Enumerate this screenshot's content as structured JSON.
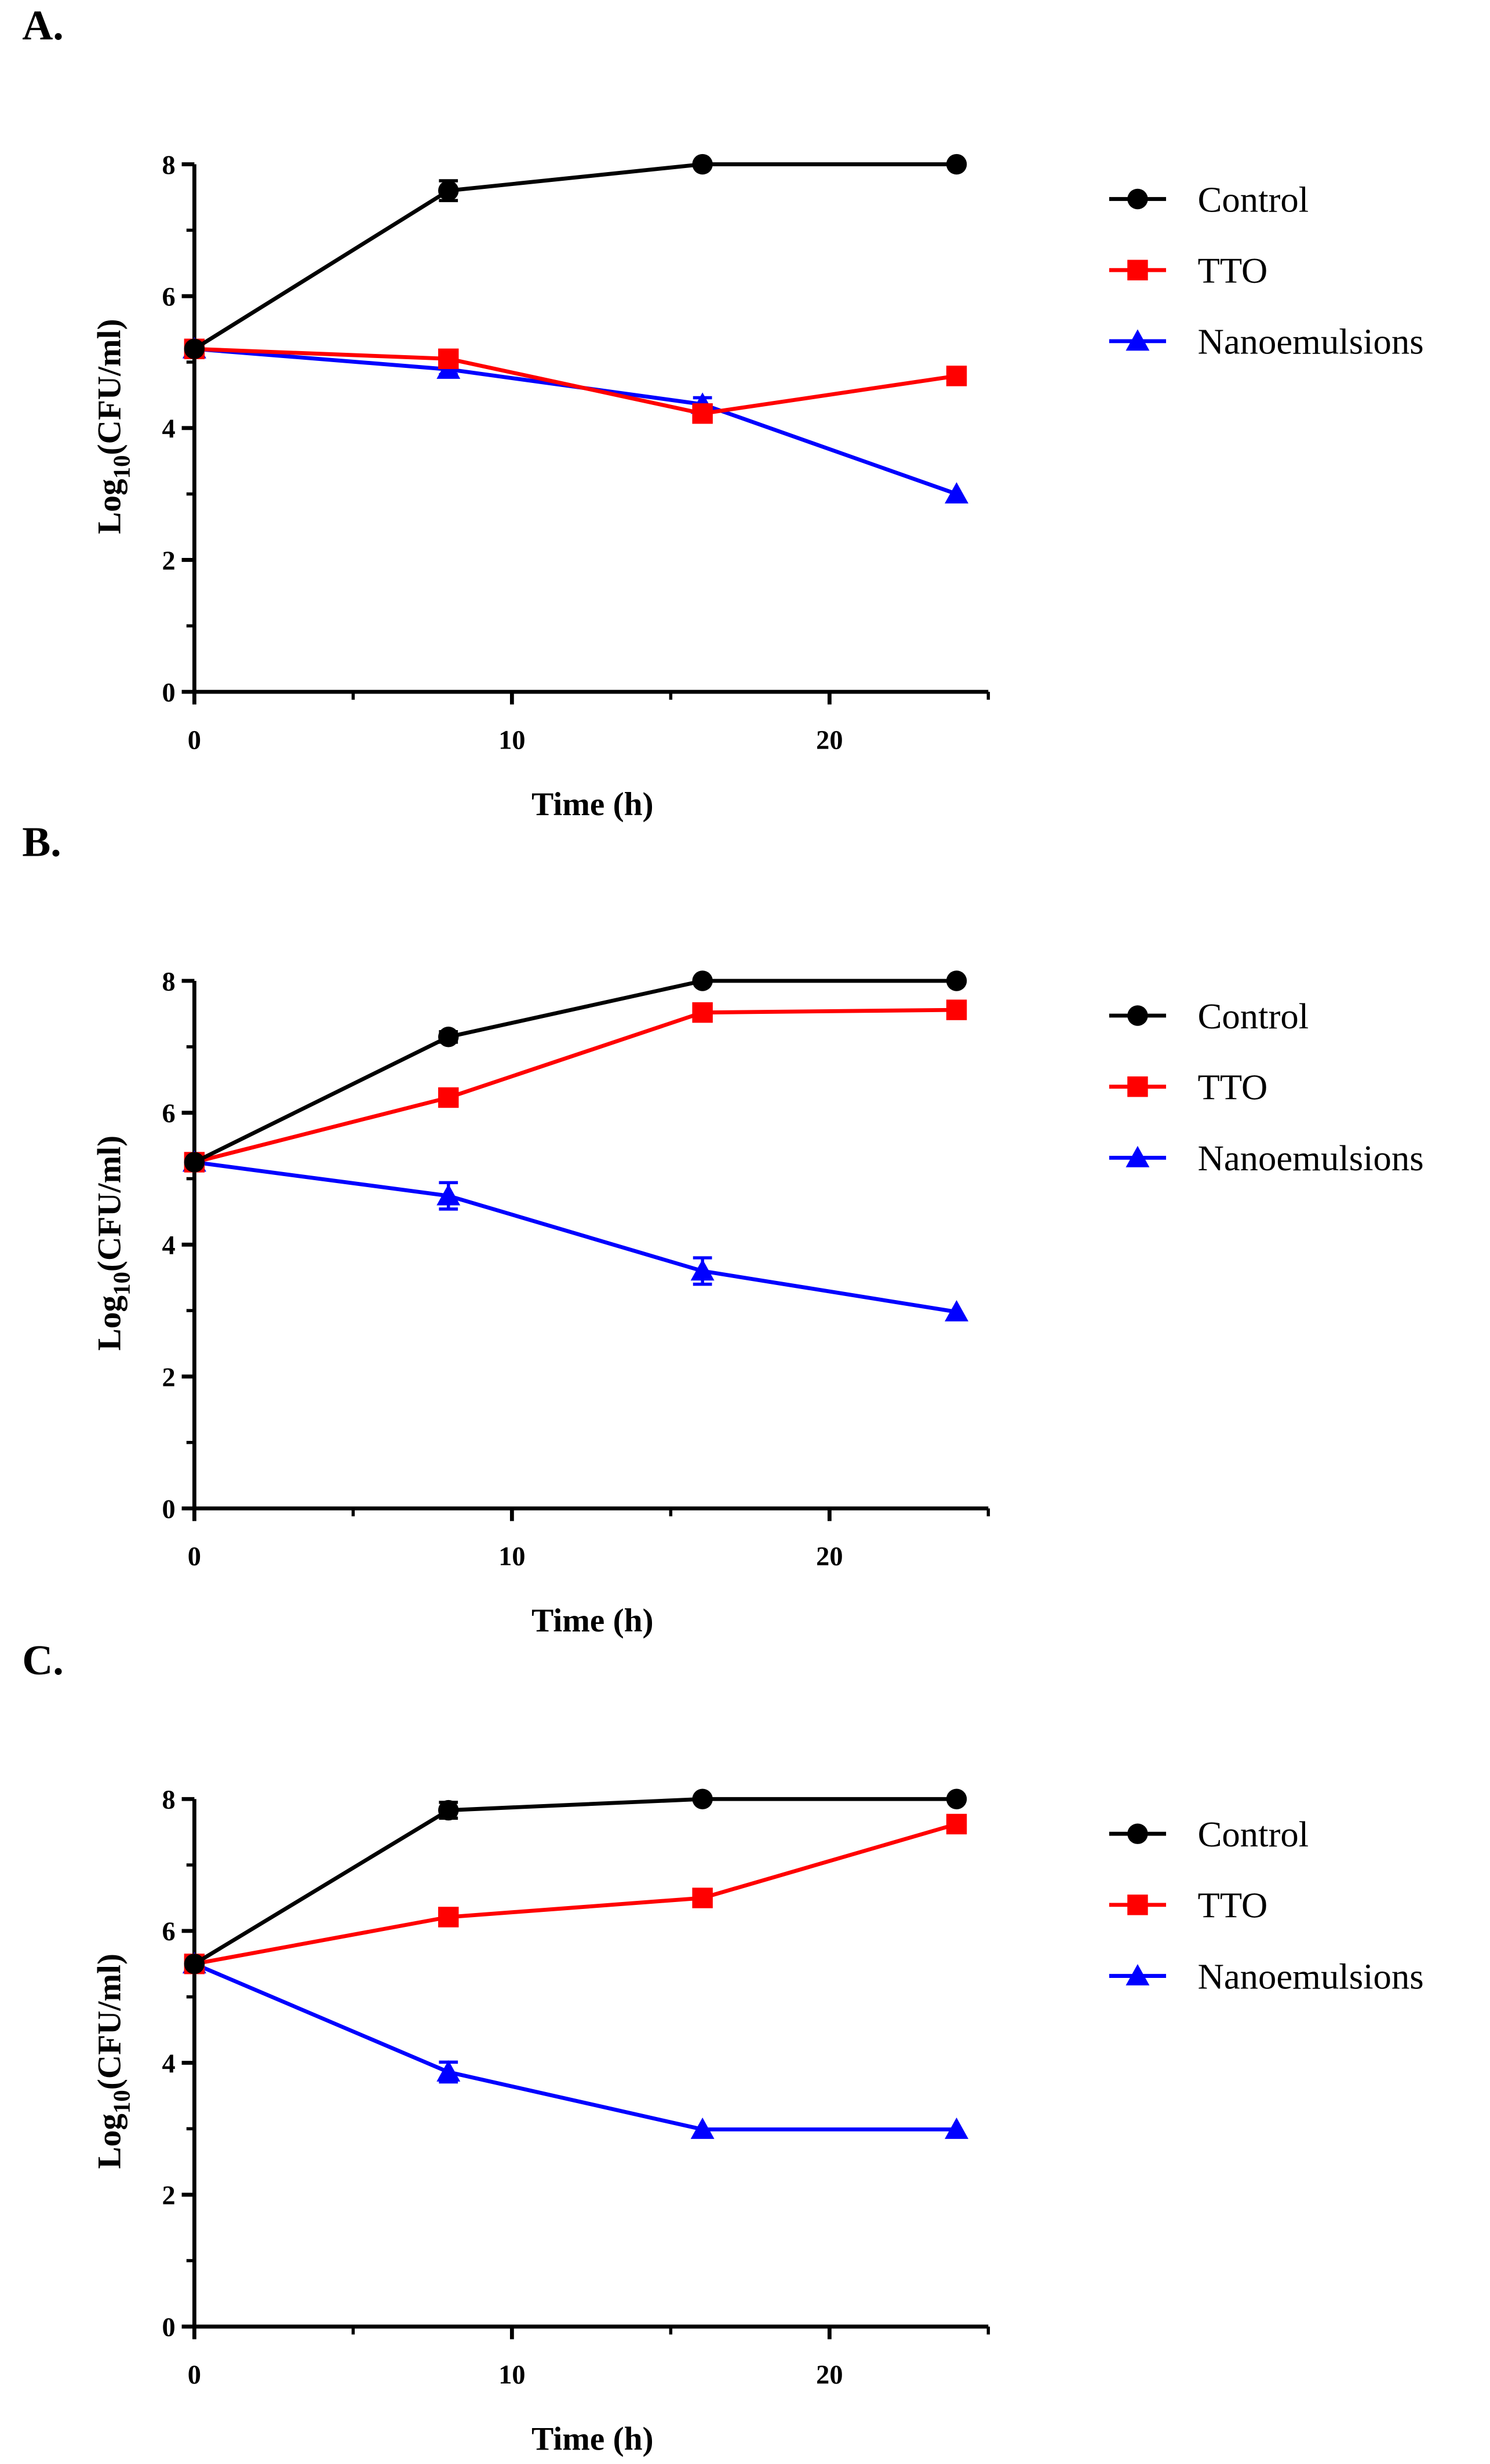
{
  "chart_data": [
    {
      "panel": "A.",
      "type": "line",
      "x": [
        0,
        8,
        16,
        24
      ],
      "xlabel": "Time (h)",
      "ylabel": {
        "main": "Log",
        "sub": "10",
        "rest": "(CFU/ml)"
      },
      "xlim": [
        0,
        25
      ],
      "ylim": [
        0,
        8
      ],
      "xticks": [
        "0",
        "10",
        "20"
      ],
      "yticks": [
        "0",
        "2",
        "4",
        "6",
        "8"
      ],
      "legend_position": "right",
      "series": [
        {
          "name": "Control",
          "color": "#000000",
          "marker": "circle",
          "values": [
            5.2,
            7.6,
            8.0,
            8.0
          ],
          "errors": [
            0.05,
            0.15,
            0.03,
            0.03
          ]
        },
        {
          "name": "TTO",
          "color": "#ff0000",
          "marker": "square",
          "values": [
            5.2,
            5.05,
            4.22,
            4.79
          ],
          "errors": [
            0.05,
            0.1,
            0.08,
            0.05
          ]
        },
        {
          "name": "Nanoemulsions",
          "color": "#0000ff",
          "marker": "triangle",
          "values": [
            5.2,
            4.89,
            4.36,
            3.0
          ],
          "errors": [
            0.05,
            0.08,
            0.1,
            0.03
          ]
        }
      ]
    },
    {
      "panel": "B.",
      "type": "line",
      "x": [
        0,
        8,
        16,
        24
      ],
      "xlabel": "Time (h)",
      "ylabel": {
        "main": "Log",
        "sub": "10",
        "rest": "(CFU/ml)"
      },
      "xlim": [
        0,
        25
      ],
      "ylim": [
        0,
        8
      ],
      "xticks": [
        "0",
        "10",
        "20"
      ],
      "yticks": [
        "0",
        "2",
        "4",
        "6",
        "8"
      ],
      "legend_position": "right",
      "series": [
        {
          "name": "Control",
          "color": "#000000",
          "marker": "circle",
          "values": [
            5.25,
            7.15,
            8.0,
            8.0
          ],
          "errors": [
            0.05,
            0.08,
            0.03,
            0.03
          ]
        },
        {
          "name": "TTO",
          "color": "#ff0000",
          "marker": "square",
          "values": [
            5.25,
            6.23,
            7.52,
            7.56
          ],
          "errors": [
            0.05,
            0.06,
            0.08,
            0.06
          ]
        },
        {
          "name": "Nanoemulsions",
          "color": "#0000ff",
          "marker": "triangle",
          "values": [
            5.25,
            4.74,
            3.6,
            2.98
          ],
          "errors": [
            0.05,
            0.2,
            0.2,
            0.03
          ]
        }
      ]
    },
    {
      "panel": "C.",
      "type": "line",
      "x": [
        0,
        8,
        16,
        24
      ],
      "xlabel": "Time (h)",
      "ylabel": {
        "main": "Log",
        "sub": "10",
        "rest": "(CFU/ml)"
      },
      "xlim": [
        0,
        25
      ],
      "ylim": [
        0,
        8
      ],
      "xticks": [
        "0",
        "10",
        "20"
      ],
      "yticks": [
        "0",
        "2",
        "4",
        "6",
        "8"
      ],
      "legend_position": "right",
      "series": [
        {
          "name": "Control",
          "color": "#000000",
          "marker": "circle",
          "values": [
            5.5,
            7.83,
            8.0,
            8.0
          ],
          "errors": [
            0.05,
            0.12,
            0.03,
            0.03
          ]
        },
        {
          "name": "TTO",
          "color": "#ff0000",
          "marker": "square",
          "values": [
            5.5,
            6.21,
            6.5,
            7.62
          ],
          "errors": [
            0.05,
            0.06,
            0.06,
            0.08
          ]
        },
        {
          "name": "Nanoemulsions",
          "color": "#0000ff",
          "marker": "triangle",
          "values": [
            5.5,
            3.86,
            2.99,
            2.99
          ],
          "errors": [
            0.05,
            0.15,
            0.03,
            0.03
          ]
        }
      ]
    }
  ]
}
